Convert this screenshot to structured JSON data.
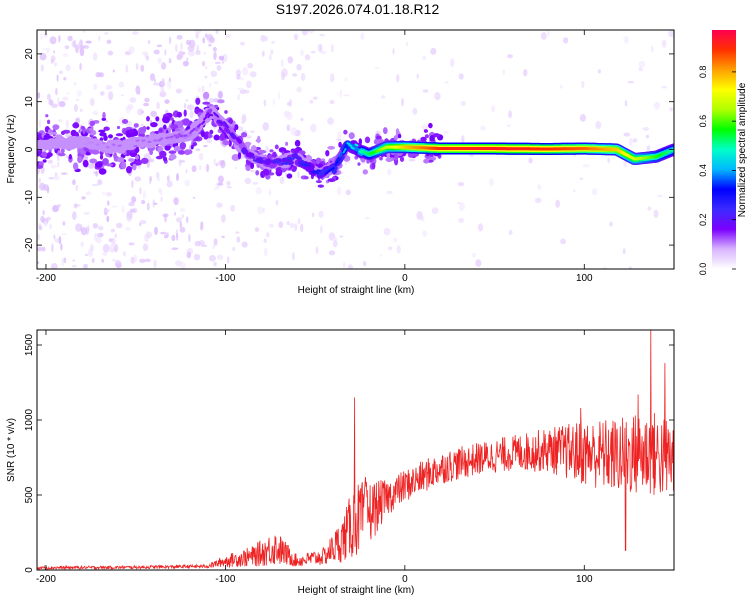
{
  "title": "S197.2026.074.01.18.R12",
  "chart_data": [
    {
      "type": "heatmap",
      "title": "",
      "xlabel": "Height of straight line (km)",
      "ylabel": "Frequency (Hz)",
      "xlim": [
        -205,
        150
      ],
      "ylim": [
        -25,
        25
      ],
      "x_ticks": [
        "-200",
        "-100",
        "0",
        "100"
      ],
      "x_tick_values": [
        -200,
        -100,
        0,
        100
      ],
      "y_ticks": [
        "20",
        "10",
        "0",
        "-10",
        "-20"
      ],
      "y_tick_values": [
        20,
        10,
        0,
        -10,
        -20
      ],
      "colorbar": {
        "label": "Normalized spectral amplitude",
        "ticks": [
          "0.0",
          "0.2",
          "0.4",
          "0.6",
          "0.8"
        ],
        "tick_values": [
          0.0,
          0.2,
          0.4,
          0.6,
          0.8
        ],
        "range": [
          0,
          0.97
        ],
        "colormap": [
          "#ffffff",
          "#d8b4fe",
          "#7b00ff",
          "#3b2bff",
          "#0000ff",
          "#00b8ff",
          "#00ffc8",
          "#00ff00",
          "#b0ff00",
          "#ffff00",
          "#ffa000",
          "#ff3000",
          "#ff0050"
        ]
      },
      "ridge": [
        {
          "x": -205,
          "y": 1,
          "amp": 0.08
        },
        {
          "x": -180,
          "y": 1.5,
          "amp": 0.1
        },
        {
          "x": -160,
          "y": 0.5,
          "amp": 0.12
        },
        {
          "x": -140,
          "y": 2,
          "amp": 0.12
        },
        {
          "x": -120,
          "y": 3,
          "amp": 0.14
        },
        {
          "x": -108,
          "y": 8,
          "amp": 0.18
        },
        {
          "x": -98,
          "y": 4,
          "amp": 0.2
        },
        {
          "x": -88,
          "y": -1,
          "amp": 0.22
        },
        {
          "x": -75,
          "y": -3,
          "amp": 0.24
        },
        {
          "x": -60,
          "y": -2,
          "amp": 0.26
        },
        {
          "x": -48,
          "y": -5,
          "amp": 0.3
        },
        {
          "x": -40,
          "y": -4,
          "amp": 0.32
        },
        {
          "x": -32,
          "y": 1,
          "amp": 0.45
        },
        {
          "x": -20,
          "y": -1,
          "amp": 0.55
        },
        {
          "x": -10,
          "y": 0.5,
          "amp": 0.7
        },
        {
          "x": 0,
          "y": 0.5,
          "amp": 0.8
        },
        {
          "x": 20,
          "y": 0.2,
          "amp": 0.93
        },
        {
          "x": 50,
          "y": 0.2,
          "amp": 0.95
        },
        {
          "x": 80,
          "y": 0.1,
          "amp": 0.92
        },
        {
          "x": 100,
          "y": 0.2,
          "amp": 0.88
        },
        {
          "x": 118,
          "y": 0,
          "amp": 0.8
        },
        {
          "x": 128,
          "y": -2,
          "amp": 0.7
        },
        {
          "x": 140,
          "y": -1.5,
          "amp": 0.6
        },
        {
          "x": 150,
          "y": 0,
          "amp": 0.5
        }
      ]
    },
    {
      "type": "line",
      "title": "",
      "xlabel": "Height of straight line (km)",
      "ylabel": "SNR (10 * v/v)",
      "xlim": [
        -205,
        150
      ],
      "ylim": [
        0,
        1600
      ],
      "x_ticks": [
        "-200",
        "-100",
        "0",
        "100"
      ],
      "x_tick_values": [
        -200,
        -100,
        0,
        100
      ],
      "y_ticks": [
        "0",
        "500",
        "1000",
        "1500"
      ],
      "y_tick_values": [
        0,
        500,
        1000,
        1500
      ],
      "series": [
        {
          "color": "#ee2222",
          "envelope": [
            {
              "x": -205,
              "mean": 15,
              "spread": 10
            },
            {
              "x": -150,
              "mean": 18,
              "spread": 10
            },
            {
              "x": -110,
              "mean": 25,
              "spread": 12
            },
            {
              "x": -100,
              "mean": 60,
              "spread": 40
            },
            {
              "x": -85,
              "mean": 90,
              "spread": 70
            },
            {
              "x": -72,
              "mean": 150,
              "spread": 120
            },
            {
              "x": -60,
              "mean": 60,
              "spread": 40
            },
            {
              "x": -45,
              "mean": 90,
              "spread": 60
            },
            {
              "x": -35,
              "mean": 200,
              "spread": 150
            },
            {
              "x": -28,
              "mean": 330,
              "spread": 250
            },
            {
              "x": -20,
              "mean": 380,
              "spread": 220
            },
            {
              "x": -10,
              "mean": 480,
              "spread": 120
            },
            {
              "x": 0,
              "mean": 560,
              "spread": 110
            },
            {
              "x": 20,
              "mean": 680,
              "spread": 110
            },
            {
              "x": 40,
              "mean": 740,
              "spread": 110
            },
            {
              "x": 60,
              "mean": 780,
              "spread": 120
            },
            {
              "x": 80,
              "mean": 800,
              "spread": 150
            },
            {
              "x": 100,
              "mean": 780,
              "spread": 220
            },
            {
              "x": 120,
              "mean": 760,
              "spread": 260
            },
            {
              "x": 135,
              "mean": 780,
              "spread": 300
            },
            {
              "x": 150,
              "mean": 740,
              "spread": 280
            }
          ],
          "peaks": [
            {
              "x": -28,
              "y": 1150
            },
            {
              "x": -22,
              "y": 620
            },
            {
              "x": 98,
              "y": 1080
            },
            {
              "x": 130,
              "y": 1170
            },
            {
              "x": 137,
              "y": 1600
            },
            {
              "x": 145,
              "y": 1380
            },
            {
              "x": 123,
              "y": 130
            }
          ]
        }
      ]
    }
  ]
}
